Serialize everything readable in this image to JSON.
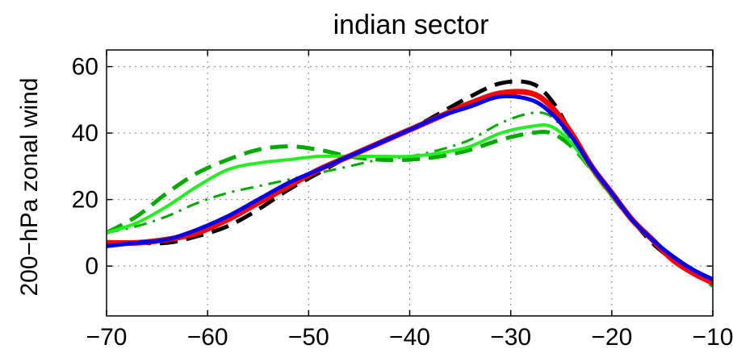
{
  "chart_data": {
    "type": "line",
    "title": "indian sector",
    "xlabel": "",
    "ylabel": "200−hPa zonal wind",
    "xlim": [
      -70,
      -10
    ],
    "ylim": [
      -15,
      65
    ],
    "xticks": [
      -70,
      -60,
      -50,
      -40,
      -30,
      -20,
      -10
    ],
    "yticks": [
      0,
      20,
      40,
      60
    ],
    "xtick_labels": [
      "−70",
      "−60",
      "−50",
      "−40",
      "−30",
      "−20",
      "−10"
    ],
    "ytick_labels": [
      "0",
      "20",
      "40",
      "60"
    ],
    "grid": true,
    "series": [
      {
        "color": "#00aa00",
        "dash": "solid",
        "style": "dashed",
        "width": 5,
        "x": [
          -70,
          -67,
          -64,
          -61,
          -58,
          -55,
          -52,
          -49,
          -46,
          -43,
          -40,
          -37,
          -34,
          -31,
          -28,
          -26,
          -24,
          -22,
          -20,
          -18,
          -16,
          -14,
          -12,
          -10
        ],
        "y": [
          10,
          15,
          22,
          28,
          32,
          35,
          36,
          35,
          33,
          32,
          32,
          33,
          35,
          38,
          40,
          40,
          36,
          29,
          21,
          14,
          8,
          3,
          -1,
          -6
        ]
      },
      {
        "color": "#00aa00",
        "style": "dashdot",
        "width": 3,
        "x": [
          -70,
          -67,
          -64,
          -61,
          -58,
          -55,
          -52,
          -49,
          -46,
          -43,
          -40,
          -37,
          -34,
          -31,
          -28,
          -26,
          -24,
          -22,
          -20,
          -18,
          -16,
          -14,
          -12,
          -10
        ],
        "y": [
          10,
          12,
          15,
          19,
          22,
          24,
          26,
          28,
          30,
          32,
          33,
          35,
          38,
          43,
          46,
          45,
          38,
          29,
          21,
          14,
          8,
          3,
          -1,
          -5
        ]
      },
      {
        "color": "#22ee22",
        "style": "solid",
        "width": 4,
        "x": [
          -70,
          -67,
          -64,
          -61,
          -58,
          -55,
          -52,
          -49,
          -46,
          -43,
          -40,
          -37,
          -34,
          -31,
          -28,
          -26,
          -24,
          -22,
          -20,
          -18,
          -16,
          -14,
          -12,
          -10
        ],
        "y": [
          10,
          13,
          18,
          24,
          29,
          31,
          32,
          33,
          33,
          33,
          33,
          34,
          36,
          40,
          42,
          42,
          37,
          29,
          21,
          14,
          8,
          3,
          -1,
          -5
        ]
      },
      {
        "color": "#000000",
        "style": "dashed",
        "width": 5,
        "x": [
          -70,
          -67,
          -64,
          -61,
          -58,
          -55,
          -52,
          -49,
          -46,
          -43,
          -40,
          -37,
          -34,
          -31,
          -28,
          -26,
          -24,
          -22,
          -20,
          -18,
          -16,
          -14,
          -12,
          -10
        ],
        "y": [
          7,
          7,
          7,
          9,
          12,
          17,
          23,
          28,
          33,
          37,
          41,
          46,
          51,
          55,
          55,
          50,
          40,
          30,
          22,
          14,
          7,
          2,
          -2,
          -4
        ]
      },
      {
        "color": "#ff0000",
        "style": "solid",
        "width": 7,
        "x": [
          -70,
          -67,
          -64,
          -61,
          -58,
          -55,
          -52,
          -49,
          -46,
          -43,
          -40,
          -37,
          -34,
          -31,
          -28,
          -26,
          -24,
          -22,
          -20,
          -18,
          -16,
          -14,
          -12,
          -10
        ],
        "y": [
          7,
          7,
          8,
          10,
          14,
          19,
          24,
          29,
          33,
          37,
          41,
          45,
          49,
          52,
          52,
          48,
          40,
          30,
          22,
          14,
          8,
          2,
          -2,
          -5
        ]
      },
      {
        "color": "#0000ee",
        "style": "solid",
        "width": 5,
        "x": [
          -70,
          -67,
          -64,
          -61,
          -58,
          -55,
          -52,
          -49,
          -46,
          -43,
          -40,
          -37,
          -34,
          -31,
          -28,
          -26,
          -24,
          -22,
          -20,
          -18,
          -16,
          -14,
          -12,
          -10
        ],
        "y": [
          6,
          7,
          8,
          11,
          15,
          20,
          25,
          29,
          33,
          37,
          41,
          45,
          48,
          51,
          50,
          46,
          39,
          30,
          22,
          14,
          8,
          3,
          -1,
          -4
        ]
      }
    ]
  }
}
